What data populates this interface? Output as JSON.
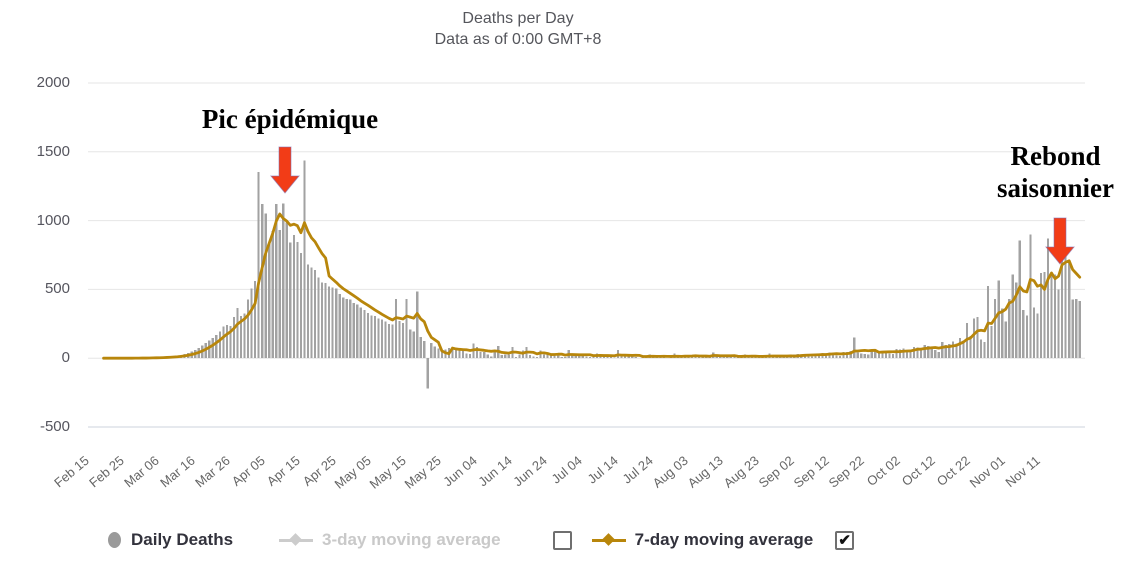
{
  "title": {
    "text": "Deaths per Day",
    "subtitle": "Data as of 0:00 GMT+8"
  },
  "annotations": [
    {
      "text": "Pic épidémique",
      "arrow_color": "#f23c17",
      "arrow_outline": "#7b6bb0"
    },
    {
      "text": "Rebond saisonnier",
      "arrow_color": "#f23c17",
      "arrow_outline": "#7b6bb0"
    }
  ],
  "legend": {
    "sequence": [
      "item:0",
      "item:1",
      "checkbox:0",
      "item:2",
      "checkbox:1"
    ],
    "items": [
      {
        "label": "Daily Deaths",
        "marker": "circle",
        "color": "#9a9a9a",
        "text_color": "#32323c",
        "enabled": true
      },
      {
        "label": "3-day moving average",
        "marker": "line-diamond",
        "color": "#cccccc",
        "text_color": "#c9c9c9",
        "enabled": false
      },
      {
        "label": "7-day moving average",
        "marker": "line-diamond",
        "color": "#b8860b",
        "text_color": "#32323c",
        "enabled": true
      }
    ],
    "checkboxes": [
      {
        "for": "3-day moving average",
        "checked": false
      },
      {
        "for": "7-day moving average",
        "checked": true
      }
    ]
  },
  "chart_data": {
    "type": "bar+line",
    "title": "Deaths per Day",
    "subtitle": "Data as of 0:00 GMT+8",
    "x_unit": "day",
    "x_start": "Feb 15",
    "x_end": "Nov 21",
    "x_tick_interval_days": 10,
    "x_tick_labels": [
      "Feb 15",
      "Feb 25",
      "Mar 06",
      "Mar 16",
      "Mar 26",
      "Apr 05",
      "Apr 15",
      "Apr 25",
      "May 05",
      "May 15",
      "May 25",
      "Jun 04",
      "Jun 14",
      "Jun 24",
      "Jul 04",
      "Jul 14",
      "Jul 24",
      "Aug 03",
      "Aug 13",
      "Aug 23",
      "Sep 02",
      "Sep 12",
      "Sep 22",
      "Oct 02",
      "Oct 12",
      "Oct 22",
      "Nov 01",
      "Nov 11"
    ],
    "ylim": [
      -500,
      2000
    ],
    "yticks": [
      2000,
      1500,
      1000,
      500,
      0,
      -500
    ],
    "grid": true,
    "grid_color": "#e6e6e6",
    "axis_line_color": "#ccd3de",
    "series": [
      {
        "name": "Daily Deaths",
        "type": "bar",
        "color": "#a2a2a2",
        "visible": true,
        "values": [
          0,
          0,
          0,
          0,
          0,
          0,
          0,
          0,
          0,
          0,
          0,
          1,
          1,
          2,
          2,
          2,
          3,
          4,
          5,
          6,
          8,
          10,
          12,
          15,
          19,
          24,
          30,
          38,
          48,
          60,
          75,
          92,
          112,
          128,
          148,
          170,
          195,
          230,
          240,
          235,
          300,
          365,
          305,
          325,
          425,
          505,
          560,
          1355,
          1120,
          1053,
          833,
          925,
          1120,
          930,
          1125,
          985,
          840,
          895,
          845,
          765,
          1438,
          680,
          660,
          642,
          585,
          550,
          545,
          520,
          515,
          505,
          465,
          440,
          430,
          425,
          400,
          390,
          370,
          350,
          330,
          310,
          305,
          290,
          280,
          265,
          250,
          245,
          430,
          270,
          255,
          430,
          210,
          195,
          485,
          155,
          125,
          -220,
          110,
          85,
          70,
          45,
          65,
          75,
          65,
          66,
          65,
          57,
          35,
          31,
          107,
          81,
          44,
          46,
          28,
          13,
          54,
          87,
          23,
          27,
          28,
          81,
          9,
          28,
          57,
          81,
          25,
          14,
          7,
          57,
          28,
          27,
          26,
          30,
          28,
          10,
          8,
          58,
          27,
          18,
          25,
          26,
          14,
          8,
          14,
          33,
          21,
          19,
          25,
          8,
          4,
          60,
          19,
          18,
          14,
          22,
          9,
          3,
          4,
          18,
          26,
          17,
          14,
          9,
          7,
          3,
          14,
          33,
          15,
          12,
          20,
          6,
          12,
          28,
          18,
          14,
          12,
          10,
          42,
          12,
          16,
          18,
          11,
          14,
          16,
          9,
          6,
          28,
          16,
          14,
          12,
          9,
          4,
          16,
          36,
          18,
          14,
          12,
          8,
          6,
          24,
          26,
          30,
          28,
          24,
          18,
          12,
          30,
          34,
          38,
          30,
          42,
          36,
          20,
          16,
          44,
          46,
          52,
          150,
          40,
          36,
          30,
          26,
          62,
          58,
          52,
          48,
          42,
          36,
          30,
          66,
          63,
          70,
          58,
          46,
          80,
          76,
          66,
          96,
          88,
          80,
          60,
          46,
          116,
          96,
          104,
          122,
          108,
          146,
          128,
          257,
          163,
          290,
          300,
          137,
          116,
          523,
          235,
          430,
          565,
          360,
          265,
          430,
          610,
          550,
          855,
          350,
          310,
          900,
          370,
          325,
          620,
          625,
          870,
          625,
          610,
          500,
          905,
          745,
          700,
          425,
          430,
          415
        ]
      },
      {
        "name": "3-day moving average",
        "type": "line",
        "color": "#c9c9c9",
        "visible": false,
        "derived": {
          "window": 3,
          "of": "Daily Deaths"
        }
      },
      {
        "name": "7-day moving average",
        "type": "line",
        "color": "#b8860b",
        "visible": true,
        "derived": {
          "window": 7,
          "of": "Daily Deaths"
        }
      }
    ]
  }
}
